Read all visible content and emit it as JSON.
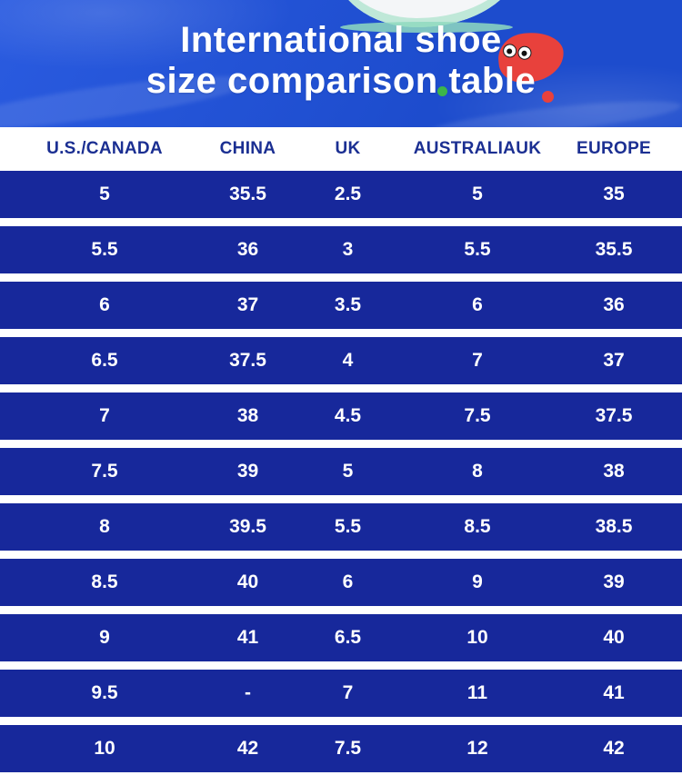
{
  "title": {
    "line1": "International shoe",
    "line2": "size comparison table"
  },
  "icons": {
    "shoe_icon": "shoe-toe-shape",
    "blob_icon": "red-blob-with-eyes",
    "green_dot_icon": "green-dot",
    "red_dot_icon": "red-dot"
  },
  "colors": {
    "hero_blue": "#1d4ccd",
    "hero_blue_light": "#2a5be0",
    "row_blue": "#17289b",
    "header_text": "#1b2f92",
    "title_text": "#ffffff",
    "accent_red": "#e8413c",
    "accent_green": "#3cb54a"
  },
  "table": {
    "headers": [
      "U.S./CANADA",
      "CHINA",
      "UK",
      "AUSTRALIAUK",
      "EUROPE"
    ],
    "rows": [
      [
        "5",
        "35.5",
        "2.5",
        "5",
        "35"
      ],
      [
        "5.5",
        "36",
        "3",
        "5.5",
        "35.5"
      ],
      [
        "6",
        "37",
        "3.5",
        "6",
        "36"
      ],
      [
        "6.5",
        "37.5",
        "4",
        "7",
        "37"
      ],
      [
        "7",
        "38",
        "4.5",
        "7.5",
        "37.5"
      ],
      [
        "7.5",
        "39",
        "5",
        "8",
        "38"
      ],
      [
        "8",
        "39.5",
        "5.5",
        "8.5",
        "38.5"
      ],
      [
        "8.5",
        "40",
        "6",
        "9",
        "39"
      ],
      [
        "9",
        "41",
        "6.5",
        "10",
        "40"
      ],
      [
        "9.5",
        "-",
        "7",
        "11",
        "41"
      ],
      [
        "10",
        "42",
        "7.5",
        "12",
        "42"
      ]
    ]
  },
  "chart_data": {
    "type": "table",
    "title": "International shoe size comparison table",
    "columns": [
      "U.S./CANADA",
      "CHINA",
      "UK",
      "AUSTRALIAUK",
      "EUROPE"
    ],
    "rows": [
      [
        "5",
        "35.5",
        "2.5",
        "5",
        "35"
      ],
      [
        "5.5",
        "36",
        "3",
        "5.5",
        "35.5"
      ],
      [
        "6",
        "37",
        "3.5",
        "6",
        "36"
      ],
      [
        "6.5",
        "37.5",
        "4",
        "7",
        "37"
      ],
      [
        "7",
        "38",
        "4.5",
        "7.5",
        "37.5"
      ],
      [
        "7.5",
        "39",
        "5",
        "8",
        "38"
      ],
      [
        "8",
        "39.5",
        "5.5",
        "8.5",
        "38.5"
      ],
      [
        "8.5",
        "40",
        "6",
        "9",
        "39"
      ],
      [
        "9",
        "41",
        "6.5",
        "10",
        "40"
      ],
      [
        "9.5",
        "-",
        "7",
        "11",
        "41"
      ],
      [
        "10",
        "42",
        "7.5",
        "12",
        "42"
      ]
    ]
  }
}
